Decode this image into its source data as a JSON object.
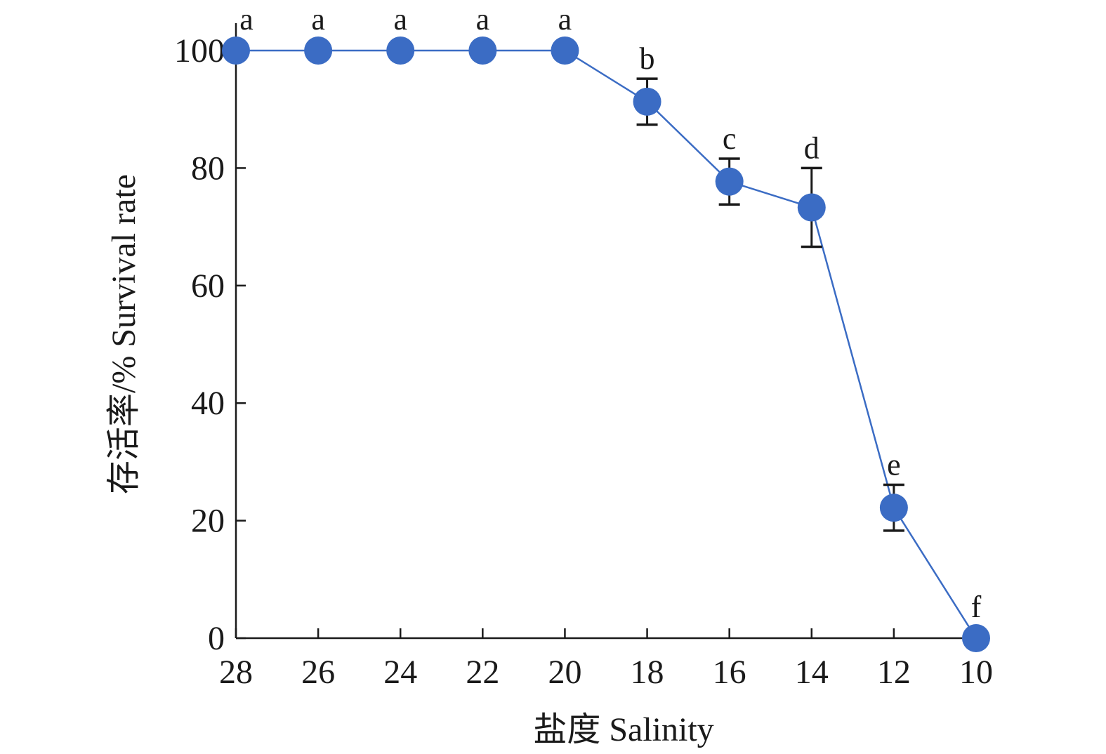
{
  "chart_data": {
    "type": "line",
    "title": "",
    "xlabel": "盐度 Salinity",
    "ylabel": "存活率/% Survival rate",
    "x_reversed": true,
    "xlim": [
      28,
      10
    ],
    "ylim": [
      0,
      105
    ],
    "x_ticks": [
      28,
      26,
      24,
      22,
      20,
      18,
      16,
      14,
      12,
      10
    ],
    "y_ticks": [
      0,
      20,
      40,
      60,
      80,
      100
    ],
    "grid": false,
    "legend": "none",
    "series": [
      {
        "color": "#3b6cc4",
        "x": [
          28,
          26,
          24,
          22,
          20,
          18,
          16,
          14,
          12,
          10
        ],
        "y": [
          100,
          100,
          100,
          100,
          100,
          91.3,
          77.7,
          73.3,
          22.2,
          0
        ],
        "error": [
          0,
          0,
          0,
          0,
          0,
          3.9,
          3.9,
          6.7,
          3.9,
          0
        ],
        "labels": [
          "a",
          "a",
          "a",
          "a",
          "a",
          "b",
          "c",
          "d",
          "e",
          "f"
        ]
      }
    ],
    "error_bar_color": "#1a1a1a",
    "axis_color": "#1a1a1a"
  }
}
